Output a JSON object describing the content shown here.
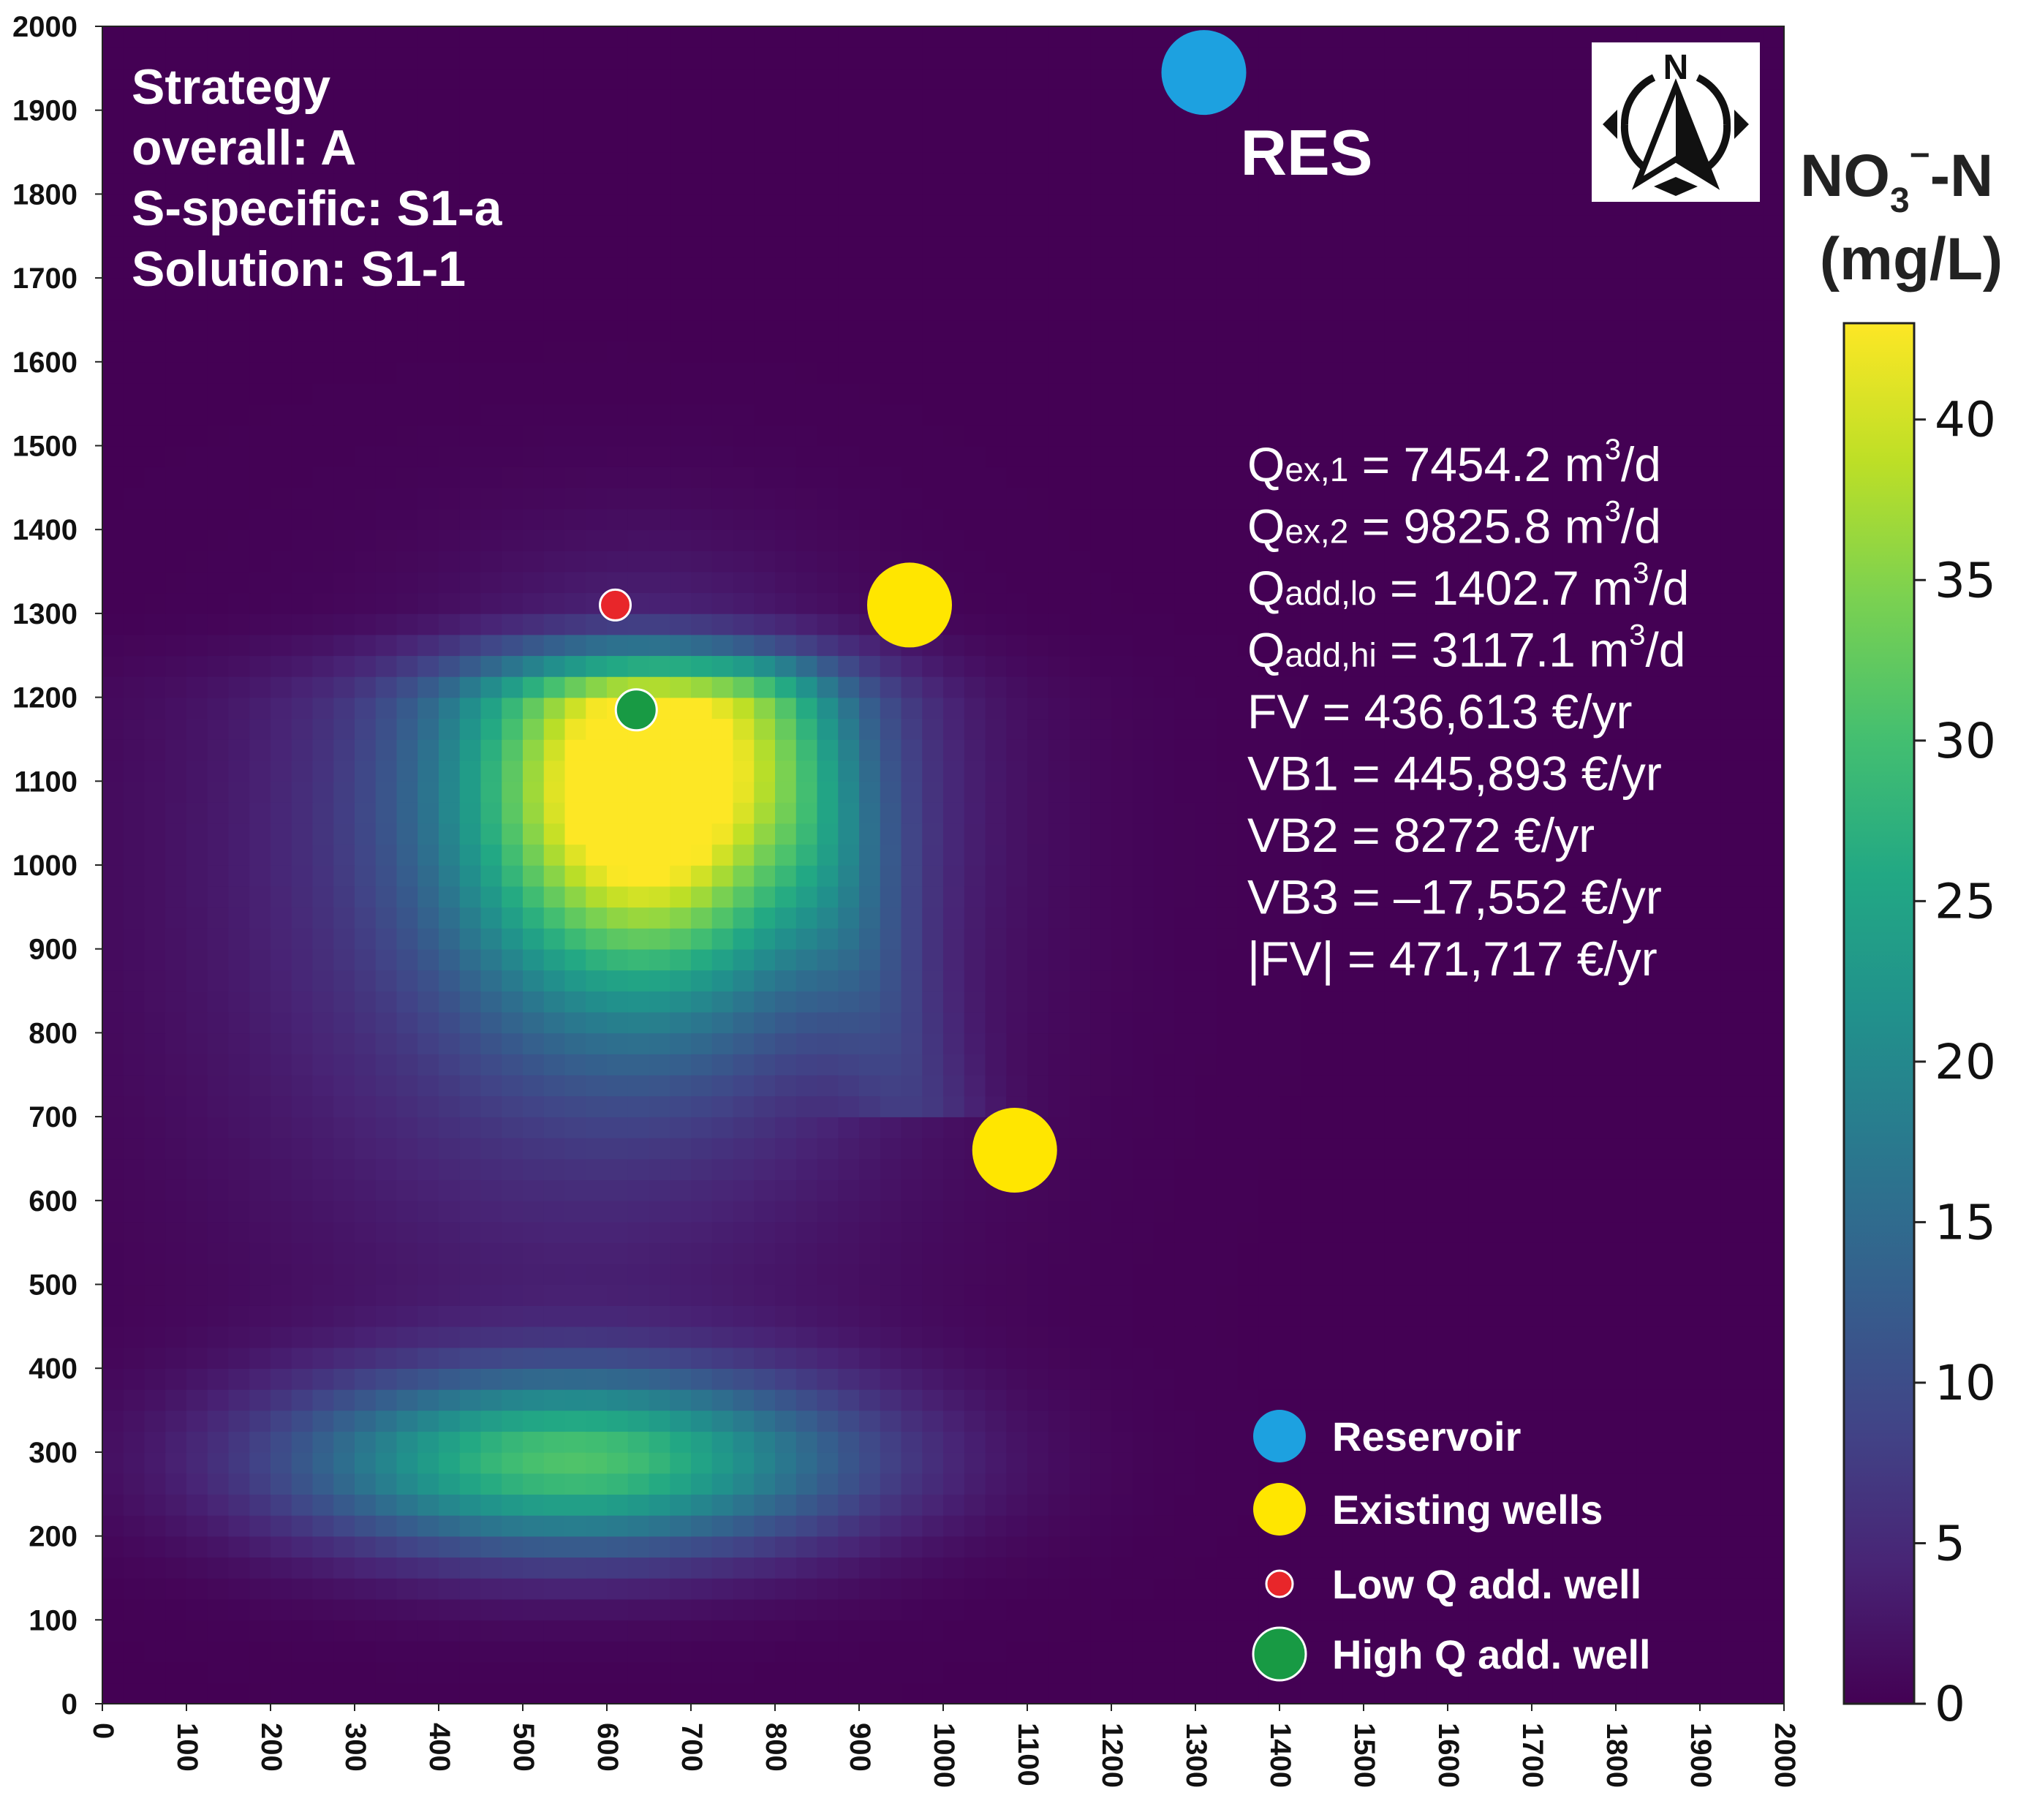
{
  "chart_data": {
    "type": "heatmap",
    "title": "",
    "xlabel": "",
    "ylabel": "",
    "xlim": [
      0,
      2000
    ],
    "ylim": [
      0,
      2000
    ],
    "x_ticks": [
      "0",
      "100",
      "200",
      "300",
      "400",
      "500",
      "600",
      "700",
      "800",
      "900",
      "1000",
      "1100",
      "1200",
      "1300",
      "1400",
      "1500",
      "1600",
      "1700",
      "1800",
      "1900",
      "2000"
    ],
    "y_ticks": [
      "0",
      "100",
      "200",
      "300",
      "400",
      "500",
      "600",
      "700",
      "800",
      "900",
      "1000",
      "1100",
      "1200",
      "1300",
      "1400",
      "1500",
      "1600",
      "1700",
      "1800",
      "1900",
      "2000"
    ],
    "colorbar": {
      "title_main": "NO",
      "title_sub": "3",
      "title_sup": "−",
      "title_rest": "-N",
      "unit": "(mg/L)",
      "range": [
        0,
        43
      ],
      "ticks": [
        "0",
        "5",
        "10",
        "15",
        "20",
        "25",
        "30",
        "35",
        "40"
      ]
    },
    "plumes": [
      {
        "name": "upper-plume",
        "x": 650,
        "y": 1100,
        "peak": 43
      },
      {
        "name": "lower-plume",
        "x": 560,
        "y": 290,
        "peak": 30
      }
    ],
    "points": [
      {
        "name": "reservoir",
        "label": "RES",
        "x": 1310,
        "y": 1945,
        "type": "reservoir"
      },
      {
        "name": "existing-well-1",
        "x": 960,
        "y": 1310,
        "type": "existing"
      },
      {
        "name": "existing-well-2",
        "x": 1085,
        "y": 660,
        "type": "existing"
      },
      {
        "name": "low-q-well",
        "x": 610,
        "y": 1310,
        "type": "low"
      },
      {
        "name": "high-q-well",
        "x": 635,
        "y": 1185,
        "type": "high"
      }
    ],
    "legend": [
      {
        "label": "Reservoir",
        "color": "#1da1e0",
        "type": "reservoir"
      },
      {
        "label": "Existing wells",
        "color": "#ffe600",
        "type": "existing"
      },
      {
        "label": "Low Q add. well",
        "color": "#e8262a",
        "type": "low"
      },
      {
        "label": "High Q add. well",
        "color": "#189a44",
        "type": "high"
      }
    ],
    "strategy": [
      "Strategy",
      "overall: A",
      "S-specific: S1-a",
      "Solution: S1-1"
    ],
    "metrics": [
      {
        "q": "Q",
        "sub": "ex,1",
        "text": " = 7454.2 m",
        "sup": "3",
        "unit": "/d"
      },
      {
        "q": "Q",
        "sub": "ex,2",
        "text": " = 9825.8 m",
        "sup": "3",
        "unit": "/d"
      },
      {
        "q": "Q",
        "sub": "add,lo",
        "text": " = 1402.7 m",
        "sup": "3",
        "unit": "/d"
      },
      {
        "q": "Q",
        "sub": "add,hi",
        "text": " = 3117.1 m",
        "sup": "3",
        "unit": "/d"
      },
      {
        "q": "FV = 436,613 €/yr",
        "sub": "",
        "text": "",
        "sup": "",
        "unit": ""
      },
      {
        "q": "VB1 = 445,893 €/yr",
        "sub": "",
        "text": "",
        "sup": "",
        "unit": ""
      },
      {
        "q": "VB2 = 8272 €/yr",
        "sub": "",
        "text": "",
        "sup": "",
        "unit": ""
      },
      {
        "q": "VB3 = –17,552 €/yr",
        "sub": "",
        "text": "",
        "sup": "",
        "unit": ""
      },
      {
        "q": "|FV| = 471,717 €/yr",
        "sub": "",
        "text": "",
        "sup": "",
        "unit": ""
      }
    ],
    "compass_letter": "N",
    "colors": {
      "background": "#440154",
      "reservoir": "#1da1e0",
      "existing": "#ffe600",
      "low": "#e8262a",
      "high": "#189a44"
    }
  }
}
